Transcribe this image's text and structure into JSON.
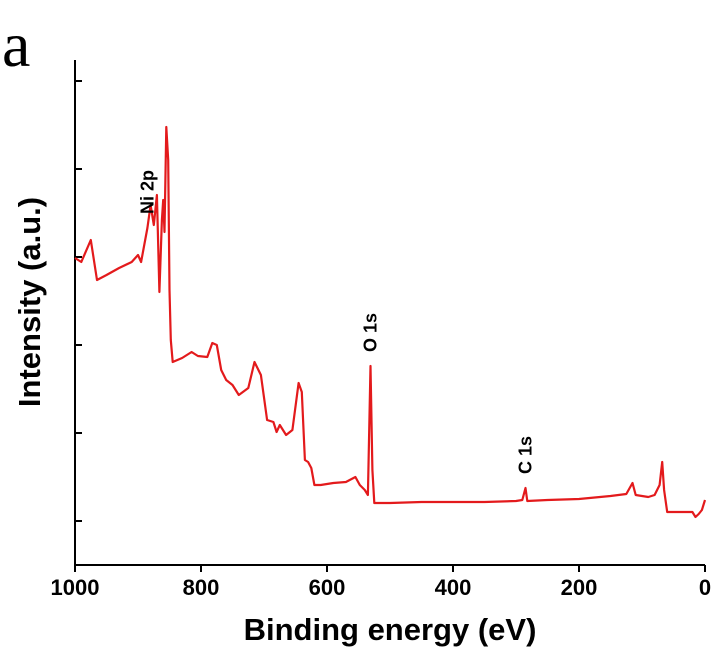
{
  "chart_data": {
    "type": "line",
    "panel_label": "a",
    "xlabel": "Binding energy (eV)",
    "ylabel": "Intensity (a.u.)",
    "x": [
      1000,
      990,
      975,
      965,
      950,
      930,
      910,
      900,
      895,
      885,
      880,
      875,
      870,
      866,
      862,
      860,
      858,
      855,
      852,
      850,
      848,
      845,
      830,
      815,
      805,
      790,
      782,
      775,
      768,
      760,
      750,
      740,
      725,
      715,
      705,
      695,
      685,
      680,
      675,
      665,
      655,
      645,
      640,
      635,
      630,
      625,
      620,
      610,
      590,
      570,
      555,
      548,
      540,
      535,
      531,
      528,
      525,
      500,
      450,
      400,
      350,
      300,
      290,
      285,
      282,
      250,
      200,
      150,
      125,
      115,
      110,
      90,
      80,
      72,
      68,
      65,
      60,
      40,
      20,
      15,
      10,
      5,
      0
    ],
    "series": [
      {
        "color": "#e31a1c",
        "values": [
          307,
          303,
          325,
          285,
          290,
          297,
          303,
          310,
          303,
          337,
          360,
          340,
          370,
          273,
          345,
          365,
          333,
          438,
          405,
          275,
          225,
          203,
          207,
          213,
          209,
          208,
          222,
          220,
          195,
          185,
          180,
          170,
          177,
          203,
          190,
          145,
          143,
          133,
          140,
          130,
          135,
          182,
          173,
          105,
          103,
          97,
          80,
          80,
          82,
          83,
          88,
          80,
          75,
          70,
          199,
          95,
          62,
          62,
          63,
          63,
          63,
          64,
          65,
          77,
          64,
          65,
          66,
          69,
          71,
          82,
          70,
          68,
          70,
          80,
          103,
          75,
          53,
          53,
          53,
          48,
          51,
          55,
          65
        ]
      }
    ],
    "annotations": [
      {
        "text": "Ni 2p",
        "x": 885
      },
      {
        "text": "O 1s",
        "x": 531
      },
      {
        "text": "C 1s",
        "x": 285
      }
    ],
    "xlim": [
      1000,
      0
    ],
    "xticks": [
      1000,
      800,
      600,
      400,
      200,
      0
    ],
    "ylim": [
      0,
      505
    ],
    "yticks": [
      44,
      132,
      220,
      308,
      396,
      484
    ]
  }
}
